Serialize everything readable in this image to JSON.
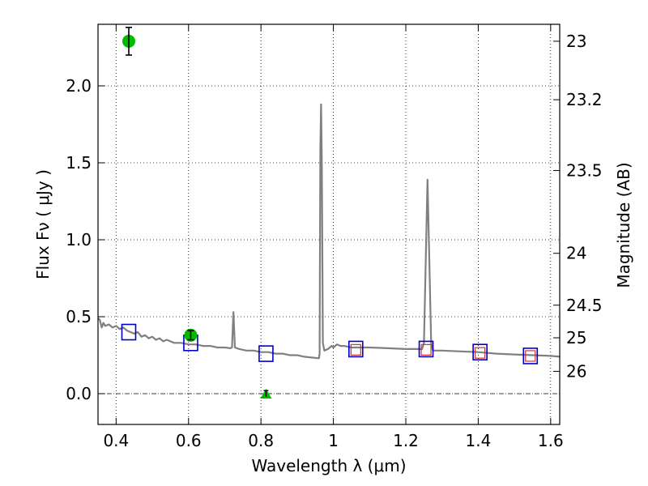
{
  "chart_data": {
    "type": "line",
    "xlabel": "Wavelength  λ (μm)",
    "ylabel": "Flux  Fν  ( μJy )",
    "y2label": "Magnitude (AB)",
    "xlim": [
      0.35,
      1.625
    ],
    "ylim": [
      -0.2,
      2.4
    ],
    "grid": true,
    "x_ticks": [
      {
        "value": 0.4,
        "label": "0.4"
      },
      {
        "value": 0.6,
        "label": "0.6"
      },
      {
        "value": 0.8,
        "label": "0.8"
      },
      {
        "value": 1.0,
        "label": "1"
      },
      {
        "value": 1.2,
        "label": "1.2"
      },
      {
        "value": 1.4,
        "label": "1.4"
      },
      {
        "value": 1.6,
        "label": "1.6"
      }
    ],
    "y_ticks": [
      {
        "value": 0.0,
        "label": "0.0"
      },
      {
        "value": 0.5,
        "label": "0.5"
      },
      {
        "value": 1.0,
        "label": "1.0"
      },
      {
        "value": 1.5,
        "label": "1.5"
      },
      {
        "value": 2.0,
        "label": "2.0"
      }
    ],
    "y2_ticks": [
      {
        "mag": 23,
        "flux": 2.29,
        "label": "23"
      },
      {
        "mag": 23.2,
        "flux": 1.91,
        "label": "23.2"
      },
      {
        "mag": 23.5,
        "flux": 1.45,
        "label": "23.5"
      },
      {
        "mag": 24,
        "flux": 0.912,
        "label": "24"
      },
      {
        "mag": 24.5,
        "flux": 0.575,
        "label": "24.5"
      },
      {
        "mag": 25,
        "flux": 0.363,
        "label": "25"
      },
      {
        "mag": 26,
        "flux": 0.145,
        "label": "26"
      }
    ],
    "model_spectrum": {
      "color": "#808080",
      "points": [
        [
          0.35,
          0.49
        ],
        [
          0.355,
          0.48
        ],
        [
          0.36,
          0.43
        ],
        [
          0.365,
          0.46
        ],
        [
          0.37,
          0.44
        ],
        [
          0.38,
          0.45
        ],
        [
          0.39,
          0.43
        ],
        [
          0.4,
          0.44
        ],
        [
          0.41,
          0.42
        ],
        [
          0.42,
          0.43
        ],
        [
          0.43,
          0.41
        ],
        [
          0.44,
          0.4
        ],
        [
          0.45,
          0.39
        ],
        [
          0.46,
          0.4
        ],
        [
          0.47,
          0.37
        ],
        [
          0.48,
          0.38
        ],
        [
          0.49,
          0.36
        ],
        [
          0.5,
          0.37
        ],
        [
          0.51,
          0.35
        ],
        [
          0.52,
          0.36
        ],
        [
          0.53,
          0.34
        ],
        [
          0.54,
          0.35
        ],
        [
          0.55,
          0.34
        ],
        [
          0.56,
          0.33
        ],
        [
          0.58,
          0.33
        ],
        [
          0.6,
          0.32
        ],
        [
          0.62,
          0.32
        ],
        [
          0.64,
          0.31
        ],
        [
          0.66,
          0.31
        ],
        [
          0.68,
          0.3
        ],
        [
          0.7,
          0.3
        ],
        [
          0.715,
          0.295
        ],
        [
          0.72,
          0.3
        ],
        [
          0.724,
          0.53
        ],
        [
          0.728,
          0.3
        ],
        [
          0.74,
          0.29
        ],
        [
          0.76,
          0.28
        ],
        [
          0.78,
          0.28
        ],
        [
          0.8,
          0.27
        ],
        [
          0.82,
          0.27
        ],
        [
          0.84,
          0.26
        ],
        [
          0.86,
          0.26
        ],
        [
          0.88,
          0.25
        ],
        [
          0.9,
          0.25
        ],
        [
          0.92,
          0.24
        ],
        [
          0.94,
          0.235
        ],
        [
          0.96,
          0.23
        ],
        [
          0.962,
          0.26
        ],
        [
          0.964,
          1.6
        ],
        [
          0.966,
          1.88
        ],
        [
          0.968,
          1.5
        ],
        [
          0.971,
          0.33
        ],
        [
          0.975,
          0.28
        ],
        [
          0.985,
          0.29
        ],
        [
          0.995,
          0.31
        ],
        [
          1.0,
          0.3
        ],
        [
          1.01,
          0.32
        ],
        [
          1.02,
          0.31
        ],
        [
          1.03,
          0.31
        ],
        [
          1.05,
          0.3
        ],
        [
          1.1,
          0.3
        ],
        [
          1.15,
          0.295
        ],
        [
          1.2,
          0.29
        ],
        [
          1.245,
          0.29
        ],
        [
          1.25,
          0.33
        ],
        [
          1.26,
          1.39
        ],
        [
          1.27,
          0.33
        ],
        [
          1.275,
          0.28
        ],
        [
          1.3,
          0.28
        ],
        [
          1.35,
          0.275
        ],
        [
          1.4,
          0.27
        ],
        [
          1.45,
          0.26
        ],
        [
          1.5,
          0.255
        ],
        [
          1.55,
          0.25
        ],
        [
          1.6,
          0.245
        ],
        [
          1.625,
          0.24
        ]
      ]
    },
    "model_photometry": {
      "edge_color": "#0000cc",
      "points": [
        {
          "x": 0.435,
          "y": 0.4
        },
        {
          "x": 0.606,
          "y": 0.33
        },
        {
          "x": 0.814,
          "y": 0.26
        },
        {
          "x": 1.062,
          "y": 0.29
        },
        {
          "x": 1.256,
          "y": 0.29
        },
        {
          "x": 1.405,
          "y": 0.27
        },
        {
          "x": 1.544,
          "y": 0.245
        }
      ]
    },
    "observed_squares": {
      "edge_color": "#cc3333",
      "points": [
        {
          "x": 1.062,
          "y": 0.285
        },
        {
          "x": 1.256,
          "y": 0.285
        },
        {
          "x": 1.405,
          "y": 0.265
        },
        {
          "x": 1.544,
          "y": 0.245
        }
      ]
    },
    "observed_photometry": {
      "color": "#00bb00",
      "points": [
        {
          "x": 0.435,
          "y": 2.29,
          "err": 0.09
        },
        {
          "x": 0.606,
          "y": 0.38,
          "err": 0.03
        }
      ]
    },
    "upper_limits": {
      "color": "#00bb00",
      "points": [
        {
          "x": 0.814,
          "y": 0.0,
          "err": 0.02
        }
      ]
    }
  }
}
